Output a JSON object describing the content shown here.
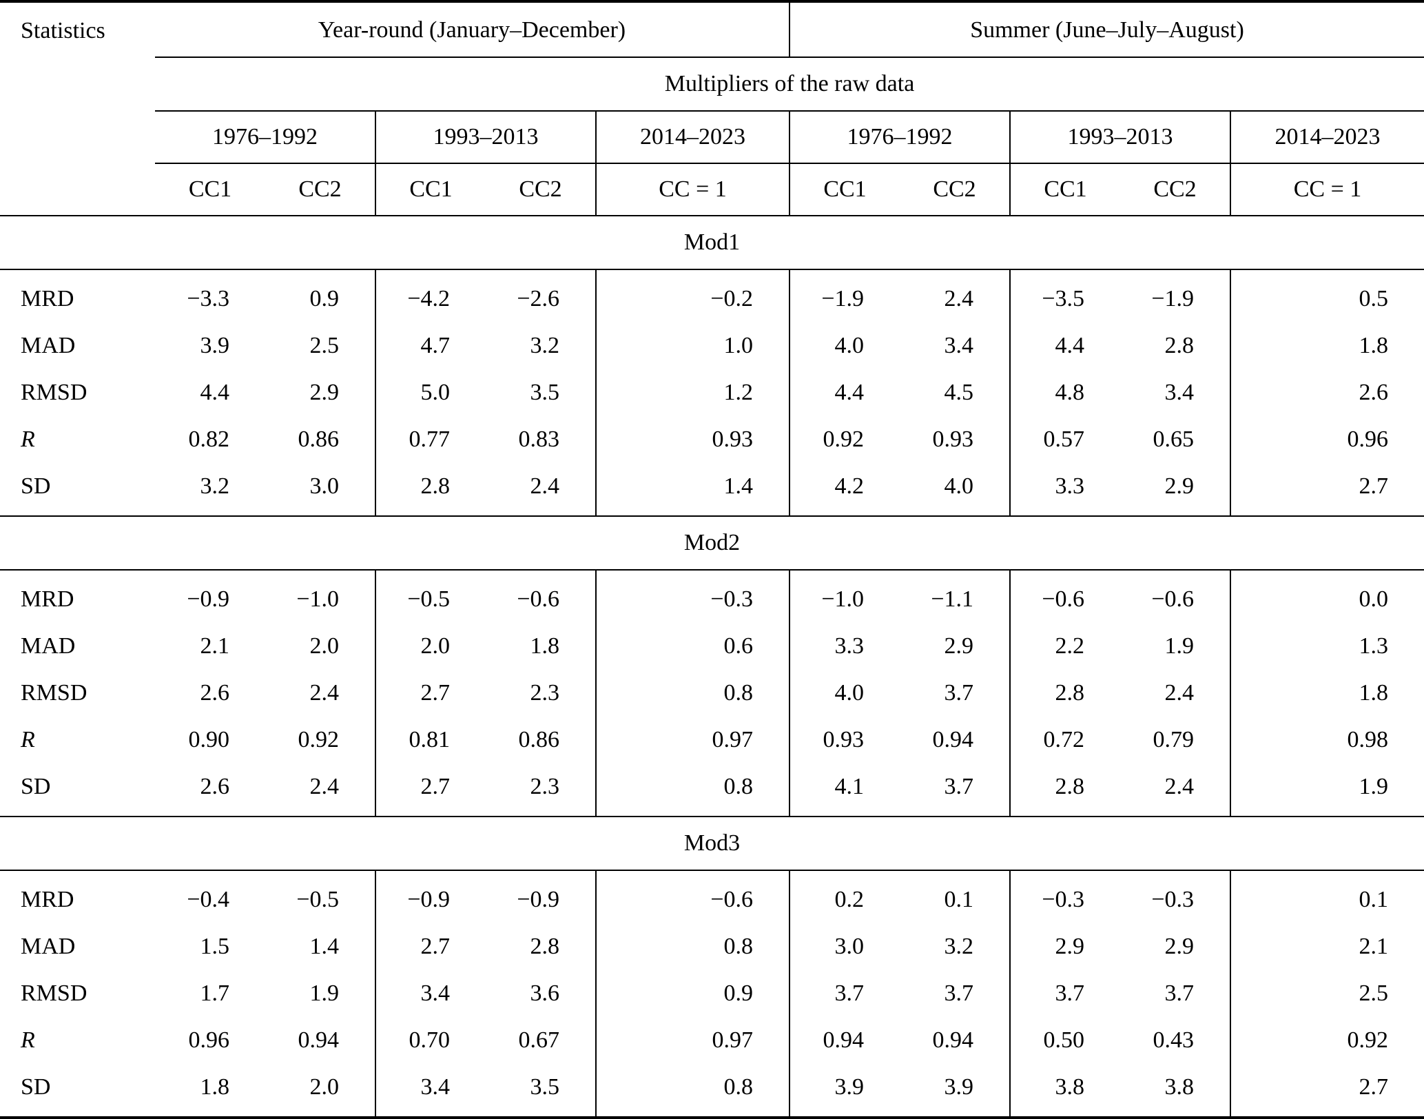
{
  "table": {
    "stat_header": "Statistics",
    "group_headers": [
      "Year-round (January–December)",
      "Summer (June–July–August)"
    ],
    "multipliers_header": "Multipliers of the raw data",
    "period_headers": [
      "1976–1992",
      "1993–2013",
      "2014–2023",
      "1976–1992",
      "1993–2013",
      "2014–2023"
    ],
    "cc_headers": [
      "CC1",
      "CC2",
      "CC1",
      "CC2",
      "CC = 1",
      "CC1",
      "CC2",
      "CC1",
      "CC2",
      "CC = 1"
    ],
    "sections": [
      {
        "name": "Mod1",
        "rows": [
          {
            "label": "MRD",
            "italic": false,
            "values": [
              "−3.3",
              "0.9",
              "−4.2",
              "−2.6",
              "−0.2",
              "−1.9",
              "2.4",
              "−3.5",
              "−1.9",
              "0.5"
            ]
          },
          {
            "label": "MAD",
            "italic": false,
            "values": [
              "3.9",
              "2.5",
              "4.7",
              "3.2",
              "1.0",
              "4.0",
              "3.4",
              "4.4",
              "2.8",
              "1.8"
            ]
          },
          {
            "label": "RMSD",
            "italic": false,
            "values": [
              "4.4",
              "2.9",
              "5.0",
              "3.5",
              "1.2",
              "4.4",
              "4.5",
              "4.8",
              "3.4",
              "2.6"
            ]
          },
          {
            "label": "R",
            "italic": true,
            "values": [
              "0.82",
              "0.86",
              "0.77",
              "0.83",
              "0.93",
              "0.92",
              "0.93",
              "0.57",
              "0.65",
              "0.96"
            ]
          },
          {
            "label": "SD",
            "italic": false,
            "values": [
              "3.2",
              "3.0",
              "2.8",
              "2.4",
              "1.4",
              "4.2",
              "4.0",
              "3.3",
              "2.9",
              "2.7"
            ]
          }
        ]
      },
      {
        "name": "Mod2",
        "rows": [
          {
            "label": "MRD",
            "italic": false,
            "values": [
              "−0.9",
              "−1.0",
              "−0.5",
              "−0.6",
              "−0.3",
              "−1.0",
              "−1.1",
              "−0.6",
              "−0.6",
              "0.0"
            ]
          },
          {
            "label": "MAD",
            "italic": false,
            "values": [
              "2.1",
              "2.0",
              "2.0",
              "1.8",
              "0.6",
              "3.3",
              "2.9",
              "2.2",
              "1.9",
              "1.3"
            ]
          },
          {
            "label": "RMSD",
            "italic": false,
            "values": [
              "2.6",
              "2.4",
              "2.7",
              "2.3",
              "0.8",
              "4.0",
              "3.7",
              "2.8",
              "2.4",
              "1.8"
            ]
          },
          {
            "label": "R",
            "italic": true,
            "values": [
              "0.90",
              "0.92",
              "0.81",
              "0.86",
              "0.97",
              "0.93",
              "0.94",
              "0.72",
              "0.79",
              "0.98"
            ]
          },
          {
            "label": "SD",
            "italic": false,
            "values": [
              "2.6",
              "2.4",
              "2.7",
              "2.3",
              "0.8",
              "4.1",
              "3.7",
              "2.8",
              "2.4",
              "1.9"
            ]
          }
        ]
      },
      {
        "name": "Mod3",
        "rows": [
          {
            "label": "MRD",
            "italic": false,
            "values": [
              "−0.4",
              "−0.5",
              "−0.9",
              "−0.9",
              "−0.6",
              "0.2",
              "0.1",
              "−0.3",
              "−0.3",
              "0.1"
            ]
          },
          {
            "label": "MAD",
            "italic": false,
            "values": [
              "1.5",
              "1.4",
              "2.7",
              "2.8",
              "0.8",
              "3.0",
              "3.2",
              "2.9",
              "2.9",
              "2.1"
            ]
          },
          {
            "label": "RMSD",
            "italic": false,
            "values": [
              "1.7",
              "1.9",
              "3.4",
              "3.6",
              "0.9",
              "3.7",
              "3.7",
              "3.7",
              "3.7",
              "2.5"
            ]
          },
          {
            "label": "R",
            "italic": true,
            "values": [
              "0.96",
              "0.94",
              "0.70",
              "0.67",
              "0.97",
              "0.94",
              "0.94",
              "0.50",
              "0.43",
              "0.92"
            ]
          },
          {
            "label": "SD",
            "italic": false,
            "values": [
              "1.8",
              "2.0",
              "3.4",
              "3.5",
              "0.8",
              "3.9",
              "3.9",
              "3.8",
              "3.8",
              "2.7"
            ]
          }
        ]
      }
    ]
  }
}
